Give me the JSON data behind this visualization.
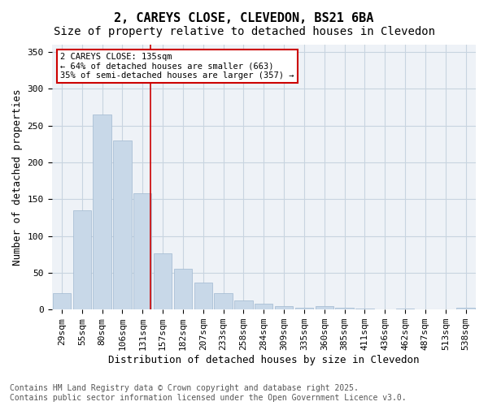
{
  "title1": "2, CAREYS CLOSE, CLEVEDON, BS21 6BA",
  "title2": "Size of property relative to detached houses in Clevedon",
  "xlabel": "Distribution of detached houses by size in Clevedon",
  "ylabel": "Number of detached properties",
  "categories": [
    "29sqm",
    "55sqm",
    "80sqm",
    "106sqm",
    "131sqm",
    "157sqm",
    "182sqm",
    "207sqm",
    "233sqm",
    "258sqm",
    "284sqm",
    "309sqm",
    "335sqm",
    "360sqm",
    "385sqm",
    "411sqm",
    "436sqm",
    "462sqm",
    "487sqm",
    "513sqm",
    "538sqm"
  ],
  "values": [
    22,
    135,
    265,
    230,
    158,
    76,
    55,
    37,
    22,
    12,
    8,
    5,
    3,
    5,
    3,
    1,
    0,
    1,
    0,
    0,
    2
  ],
  "bar_color": "#c8d8e8",
  "bar_edge_color": "#a0b8d0",
  "grid_color": "#c8d4e0",
  "bg_color": "#eef2f7",
  "vline_x_index": 4,
  "vline_color": "#cc0000",
  "annotation_text": "2 CAREYS CLOSE: 135sqm\n← 64% of detached houses are smaller (663)\n35% of semi-detached houses are larger (357) →",
  "annotation_box_color": "#cc0000",
  "ylim": [
    0,
    360
  ],
  "yticks": [
    0,
    50,
    100,
    150,
    200,
    250,
    300,
    350
  ],
  "footnote": "Contains HM Land Registry data © Crown copyright and database right 2025.\nContains public sector information licensed under the Open Government Licence v3.0.",
  "title_fontsize": 11,
  "subtitle_fontsize": 10,
  "label_fontsize": 9,
  "tick_fontsize": 8,
  "footnote_fontsize": 7
}
